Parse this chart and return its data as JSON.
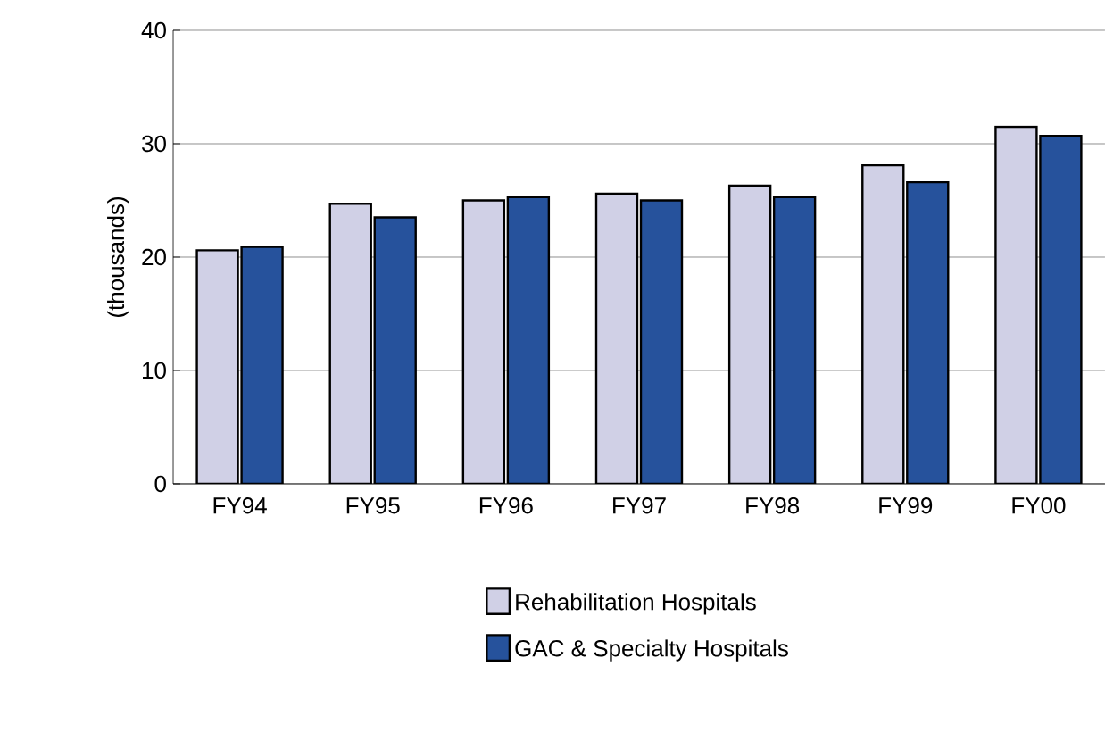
{
  "chart_data": {
    "type": "bar",
    "ylabel": "(thousands)",
    "categories": [
      "FY94",
      "FY95",
      "FY96",
      "FY97",
      "FY98",
      "FY99",
      "FY00"
    ],
    "series": [
      {
        "name": "Rehabilitation Hospitals",
        "color": "#d0d0e6",
        "values": [
          20.6,
          24.7,
          25.0,
          25.6,
          26.3,
          28.1,
          31.5
        ]
      },
      {
        "name": "GAC & Specialty Hospitals",
        "color": "#26529c",
        "values": [
          20.9,
          23.5,
          25.3,
          25.0,
          25.3,
          26.6,
          30.7
        ]
      }
    ],
    "ylim": [
      0,
      40
    ],
    "yticks": [
      0,
      10,
      20,
      30,
      40
    ],
    "grid": "y",
    "legend": "bottom"
  }
}
